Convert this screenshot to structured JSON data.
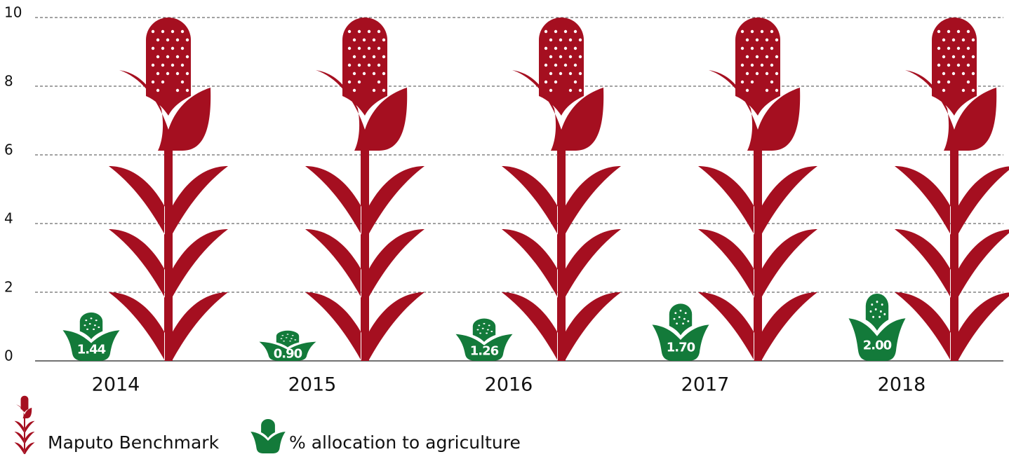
{
  "chart_data": {
    "type": "bar",
    "categories": [
      "2014",
      "2015",
      "2016",
      "2017",
      "2018"
    ],
    "series": [
      {
        "name": "Maputo Benchmark",
        "color": "#a50f20",
        "values": [
          10,
          10,
          10,
          10,
          10
        ]
      },
      {
        "name": "% allocation to agriculture",
        "color": "#137a3a",
        "values": [
          1.44,
          0.9,
          1.26,
          1.7,
          2.0
        ],
        "value_labels": [
          "1.44",
          "0.90",
          "1.26",
          "1.70",
          "2.00"
        ]
      }
    ],
    "ylim": [
      0,
      10
    ],
    "yticks": [
      0,
      2,
      4,
      6,
      8,
      10
    ],
    "grid": true
  }
}
